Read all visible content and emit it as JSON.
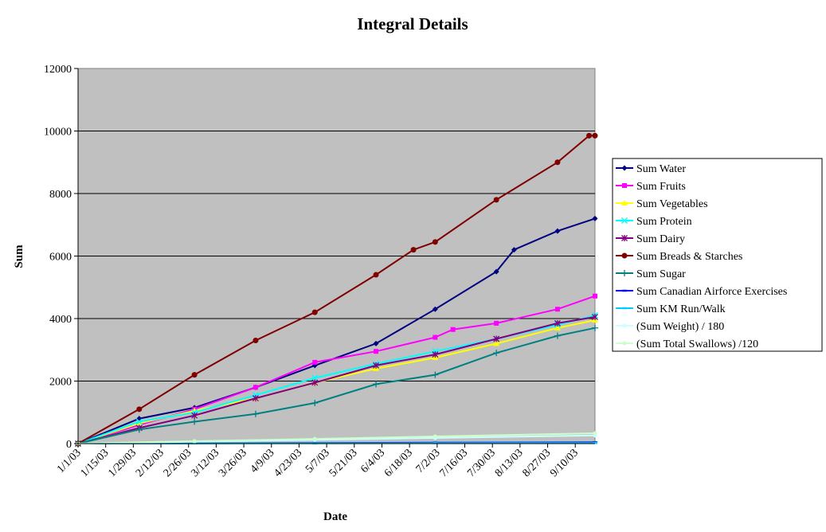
{
  "chart_data": {
    "type": "line",
    "title": "Integral Details",
    "xlabel": "Date",
    "ylabel": "Sum",
    "ylim": [
      0,
      12000
    ],
    "yticks": [
      0,
      2000,
      4000,
      6000,
      8000,
      10000,
      12000
    ],
    "xlim": [
      "2003-01-01",
      "2003-09-20"
    ],
    "xtick_labels": [
      "1/1/03",
      "1/15/03",
      "1/29/03",
      "2/12/03",
      "2/26/03",
      "3/12/03",
      "3/26/03",
      "4/9/03",
      "4/23/03",
      "5/7/03",
      "5/21/03",
      "6/4/03",
      "6/18/03",
      "7/2/03",
      "7/16/03",
      "7/30/03",
      "8/13/03",
      "8/27/03",
      "9/10/03"
    ],
    "xtick_dates": [
      "2003-01-01",
      "2003-01-15",
      "2003-01-29",
      "2003-02-12",
      "2003-02-26",
      "2003-03-12",
      "2003-03-26",
      "2003-04-09",
      "2003-04-23",
      "2003-05-07",
      "2003-05-21",
      "2003-06-04",
      "2003-06-18",
      "2003-07-02",
      "2003-07-16",
      "2003-07-30",
      "2003-08-13",
      "2003-08-27",
      "2003-09-10"
    ],
    "grid": true,
    "legend_position": "right",
    "plot_background": "#C0C0C0",
    "series": [
      {
        "name": "Sum Water",
        "color": "#000080",
        "marker": "diamond",
        "points": [
          [
            "2003-01-01",
            0
          ],
          [
            "2003-02-01",
            800
          ],
          [
            "2003-03-01",
            1150
          ],
          [
            "2003-04-01",
            1800
          ],
          [
            "2003-05-01",
            2500
          ],
          [
            "2003-06-01",
            3200
          ],
          [
            "2003-07-01",
            4300
          ],
          [
            "2003-08-01",
            5500
          ],
          [
            "2003-08-10",
            6200
          ],
          [
            "2003-09-01",
            6800
          ],
          [
            "2003-09-20",
            7200
          ]
        ]
      },
      {
        "name": "Sum Fruits",
        "color": "#FF00FF",
        "marker": "square",
        "points": [
          [
            "2003-01-01",
            0
          ],
          [
            "2003-02-01",
            600
          ],
          [
            "2003-03-01",
            1100
          ],
          [
            "2003-04-01",
            1800
          ],
          [
            "2003-05-01",
            2600
          ],
          [
            "2003-06-01",
            2950
          ],
          [
            "2003-07-01",
            3400
          ],
          [
            "2003-07-10",
            3650
          ],
          [
            "2003-08-01",
            3850
          ],
          [
            "2003-09-01",
            4300
          ],
          [
            "2003-09-20",
            4720
          ]
        ]
      },
      {
        "name": "Sum Vegetables",
        "color": "#FFFF00",
        "marker": "triangle",
        "points": [
          [
            "2003-01-01",
            0
          ],
          [
            "2003-02-01",
            650
          ],
          [
            "2003-03-01",
            1050
          ],
          [
            "2003-04-01",
            1450
          ],
          [
            "2003-05-01",
            1950
          ],
          [
            "2003-06-01",
            2400
          ],
          [
            "2003-07-01",
            2750
          ],
          [
            "2003-08-01",
            3200
          ],
          [
            "2003-09-01",
            3700
          ],
          [
            "2003-09-20",
            3950
          ]
        ]
      },
      {
        "name": "Sum Protein",
        "color": "#00FFFF",
        "marker": "x",
        "points": [
          [
            "2003-01-01",
            0
          ],
          [
            "2003-02-01",
            700
          ],
          [
            "2003-03-01",
            1000
          ],
          [
            "2003-04-01",
            1550
          ],
          [
            "2003-05-01",
            2100
          ],
          [
            "2003-06-01",
            2550
          ],
          [
            "2003-07-01",
            2950
          ],
          [
            "2003-08-01",
            3350
          ],
          [
            "2003-09-01",
            3800
          ],
          [
            "2003-09-20",
            4100
          ]
        ]
      },
      {
        "name": "Sum Dairy",
        "color": "#800080",
        "marker": "asterisk",
        "points": [
          [
            "2003-01-01",
            0
          ],
          [
            "2003-02-01",
            500
          ],
          [
            "2003-03-01",
            900
          ],
          [
            "2003-04-01",
            1450
          ],
          [
            "2003-05-01",
            1950
          ],
          [
            "2003-06-01",
            2500
          ],
          [
            "2003-07-01",
            2850
          ],
          [
            "2003-08-01",
            3350
          ],
          [
            "2003-09-01",
            3850
          ],
          [
            "2003-09-20",
            4050
          ]
        ]
      },
      {
        "name": "Sum Breads & Starches",
        "color": "#800000",
        "marker": "circle",
        "points": [
          [
            "2003-01-01",
            0
          ],
          [
            "2003-02-01",
            1100
          ],
          [
            "2003-03-01",
            2200
          ],
          [
            "2003-04-01",
            3300
          ],
          [
            "2003-05-01",
            4200
          ],
          [
            "2003-06-01",
            5400
          ],
          [
            "2003-06-20",
            6200
          ],
          [
            "2003-07-01",
            6450
          ],
          [
            "2003-08-01",
            7800
          ],
          [
            "2003-09-01",
            9000
          ],
          [
            "2003-09-17",
            9850
          ],
          [
            "2003-09-20",
            9850
          ]
        ]
      },
      {
        "name": "Sum Sugar",
        "color": "#008080",
        "marker": "plus",
        "points": [
          [
            "2003-01-01",
            0
          ],
          [
            "2003-02-01",
            450
          ],
          [
            "2003-03-01",
            700
          ],
          [
            "2003-04-01",
            950
          ],
          [
            "2003-05-01",
            1300
          ],
          [
            "2003-06-01",
            1900
          ],
          [
            "2003-07-01",
            2200
          ],
          [
            "2003-08-01",
            2900
          ],
          [
            "2003-09-01",
            3450
          ],
          [
            "2003-09-20",
            3700
          ]
        ]
      },
      {
        "name": "Sum Canadian Airforce Exercises",
        "color": "#0000FF",
        "marker": "dash",
        "points": [
          [
            "2003-01-01",
            0
          ],
          [
            "2003-03-01",
            10
          ],
          [
            "2003-05-01",
            20
          ],
          [
            "2003-07-01",
            30
          ],
          [
            "2003-09-20",
            40
          ]
        ]
      },
      {
        "name": "Sum KM Run/Walk",
        "color": "#00CCFF",
        "marker": "dash",
        "points": [
          [
            "2003-01-01",
            0
          ],
          [
            "2003-03-01",
            5
          ],
          [
            "2003-05-01",
            10
          ],
          [
            "2003-07-01",
            15
          ],
          [
            "2003-09-20",
            20
          ]
        ]
      },
      {
        "name": "(Sum Weight) / 180",
        "color": "#CCFFFF",
        "marker": "small",
        "points": [
          [
            "2003-01-01",
            0
          ],
          [
            "2003-03-01",
            60
          ],
          [
            "2003-05-01",
            120
          ],
          [
            "2003-07-01",
            180
          ],
          [
            "2003-09-20",
            260
          ]
        ]
      },
      {
        "name": "(Sum Total Swallows) /120",
        "color": "#CCFFCC",
        "marker": "small",
        "points": [
          [
            "2003-01-01",
            0
          ],
          [
            "2003-03-01",
            80
          ],
          [
            "2003-05-01",
            150
          ],
          [
            "2003-07-01",
            230
          ],
          [
            "2003-09-20",
            330
          ]
        ]
      }
    ]
  }
}
